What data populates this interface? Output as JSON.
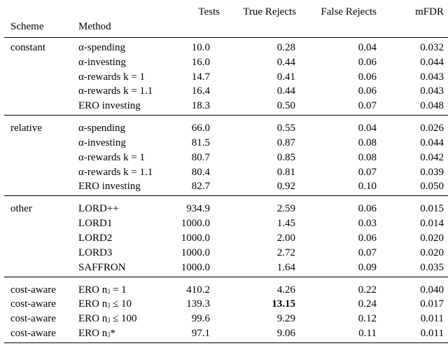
{
  "table": {
    "header": [
      "Scheme",
      "Method",
      "Tests",
      "True Rejects",
      "False Rejects",
      "mFDR"
    ],
    "groups": [
      {
        "rows": [
          [
            "constant",
            "α-spending",
            "10.0",
            "0.28",
            "0.04",
            "0.032"
          ],
          [
            null,
            "α-investing",
            "16.0",
            "0.44",
            "0.06",
            "0.044"
          ],
          [
            null,
            "α-rewards k = 1",
            "14.7",
            "0.41",
            "0.06",
            "0.043"
          ],
          [
            null,
            "α-rewards k = 1.1",
            "16.4",
            "0.44",
            "0.06",
            "0.043"
          ],
          [
            null,
            "ERO investing",
            "18.3",
            "0.50",
            "0.07",
            "0.048"
          ]
        ]
      },
      {
        "rows": [
          [
            "relative",
            "α-spending",
            "66.0",
            "0.55",
            "0.04",
            "0.026"
          ],
          [
            null,
            "α-investing",
            "81.5",
            "0.87",
            "0.08",
            "0.044"
          ],
          [
            null,
            "α-rewards k = 1",
            "80.7",
            "0.85",
            "0.08",
            "0.042"
          ],
          [
            null,
            "α-rewards k = 1.1",
            "80.4",
            "0.81",
            "0.07",
            "0.039"
          ],
          [
            null,
            "ERO investing",
            "82.7",
            "0.92",
            "0.10",
            "0.050"
          ]
        ]
      },
      {
        "rows": [
          [
            "other",
            "LORD++",
            "934.9",
            "2.59",
            "0.06",
            "0.015"
          ],
          [
            null,
            "LORD1",
            "1000.0",
            "1.45",
            "0.03",
            "0.014"
          ],
          [
            null,
            "LORD2",
            "1000.0",
            "2.00",
            "0.06",
            "0.020"
          ],
          [
            null,
            "LORD3",
            "1000.0",
            "2.72",
            "0.07",
            "0.020"
          ],
          [
            null,
            "SAFFRON",
            "1000.0",
            "1.64",
            "0.09",
            "0.035"
          ]
        ]
      },
      {
        "rows": [
          [
            "cost-aware",
            "ERO nⱼ = 1",
            "410.2",
            "4.26",
            "0.22",
            "0.040"
          ],
          [
            "cost-aware",
            "ERO nⱼ ≤ 10",
            "139.3",
            "13.15",
            "0.24",
            "0.017"
          ],
          [
            "cost-aware",
            "ERO nⱼ ≤ 100",
            "99.6",
            "9.29",
            "0.12",
            "0.011"
          ],
          [
            "cost-aware",
            "ERO nⱼ*",
            "97.1",
            "9.06",
            "0.11",
            "0.011"
          ]
        ]
      }
    ],
    "bold_cell": {
      "group": 3,
      "row": 1,
      "col": 3
    }
  }
}
